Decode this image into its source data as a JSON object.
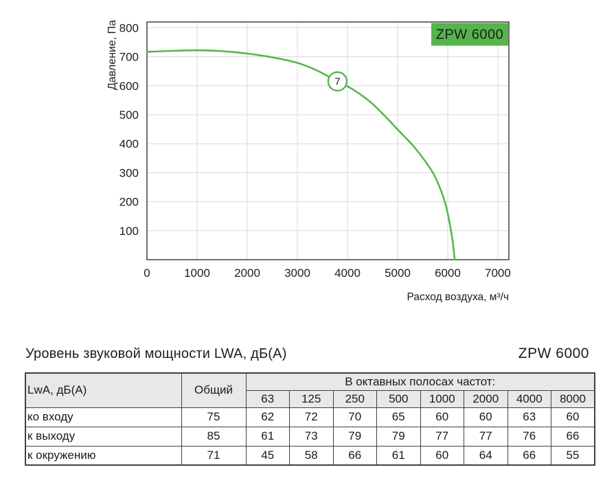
{
  "colors": {
    "curve_green": "#5ab54e",
    "badge_bg": "#55b54b",
    "badge_text": "#ffffff",
    "grid": "#d8d8d8",
    "plot_border": "#4c4c4c",
    "text": "#1d1d1d",
    "table_border": "#404040",
    "table_header_bg": "#e8e8e8"
  },
  "chart_data": [
    {
      "type": "line",
      "series_label": "ZPW 6000",
      "xlabel": "Расход воздуха, м³/ч",
      "ylabel": "Давление, Па",
      "xlim": [
        0,
        7220
      ],
      "ylim": [
        0,
        820
      ],
      "x_ticks": [
        0,
        1000,
        2000,
        3000,
        4000,
        5000,
        6000,
        7000
      ],
      "y_ticks": [
        100,
        200,
        300,
        400,
        500,
        600,
        700,
        800
      ],
      "grid": true,
      "legend_position": "badge-top-right",
      "curve_points": [
        [
          0,
          717
        ],
        [
          600,
          721
        ],
        [
          1200,
          722
        ],
        [
          1800,
          715
        ],
        [
          2400,
          701
        ],
        [
          3000,
          679
        ],
        [
          3400,
          652
        ],
        [
          3800,
          615
        ],
        [
          4100,
          588
        ],
        [
          4450,
          545
        ],
        [
          4750,
          495
        ],
        [
          5050,
          440
        ],
        [
          5300,
          395
        ],
        [
          5550,
          340
        ],
        [
          5750,
          285
        ],
        [
          5950,
          195
        ],
        [
          6080,
          85
        ],
        [
          6140,
          0
        ]
      ],
      "operating_point": {
        "label": "7",
        "x": 3800,
        "y": 615
      }
    },
    {
      "type": "table",
      "title_left": "Уровень звуковой мощности LWA, дБ(А)",
      "title_right": "ZPW 6000",
      "corner_header": "LwA, дБ(А)",
      "total_header": "Общий",
      "bands_header": "В октавных полосах частот:",
      "band_columns": [
        "63",
        "125",
        "250",
        "500",
        "1000",
        "2000",
        "4000",
        "8000"
      ],
      "rows": [
        {
          "label": "ко входу",
          "total": "75",
          "values": [
            "62",
            "72",
            "70",
            "65",
            "60",
            "60",
            "63",
            "60"
          ]
        },
        {
          "label": "к выходу",
          "total": "85",
          "values": [
            "61",
            "73",
            "79",
            "79",
            "77",
            "77",
            "76",
            "66"
          ]
        },
        {
          "label": "к окружению",
          "total": "71",
          "values": [
            "45",
            "58",
            "66",
            "61",
            "60",
            "64",
            "66",
            "55"
          ]
        }
      ]
    }
  ]
}
